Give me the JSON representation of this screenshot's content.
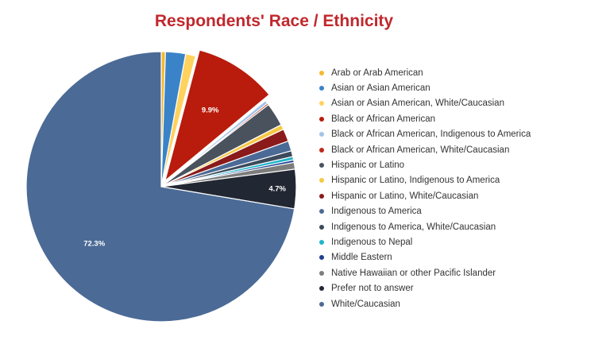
{
  "chart_data": {
    "type": "pie",
    "title": "Respondents' Race / Ethnicity",
    "legend_position": "right",
    "slices": [
      {
        "name": "Arab or Arab American",
        "value": 0.5,
        "color": "#f5b82e",
        "label": ""
      },
      {
        "name": "Asian or Asian American",
        "value": 2.4,
        "color": "#3a83c9",
        "label": ""
      },
      {
        "name": "Asian or Asian American, White/Caucasian",
        "value": 1.2,
        "color": "#ffd25e",
        "label": ""
      },
      {
        "name": "Black or African American",
        "value": 9.9,
        "color": "#b91c0c",
        "label": "9.9%"
      },
      {
        "name": "Black or African American, Indigenous to America",
        "value": 0.4,
        "color": "#9fc5e8",
        "label": ""
      },
      {
        "name": "Black or African American, White/Caucasian",
        "value": 0.2,
        "color": "#c0281d",
        "label": ""
      },
      {
        "name": "Hispanic or Latino",
        "value": 2.8,
        "color": "#4a525e",
        "label": ""
      },
      {
        "name": "Hispanic or Latino, Indigenous to America",
        "value": 0.6,
        "color": "#f7c843",
        "label": ""
      },
      {
        "name": "Hispanic or Latino, White/Caucasian",
        "value": 1.5,
        "color": "#8b1a1a",
        "label": ""
      },
      {
        "name": "Indigenous to America",
        "value": 1.2,
        "color": "#4b6a96",
        "label": ""
      },
      {
        "name": "Indigenous to America, White/Caucasian",
        "value": 0.7,
        "color": "#3c4a5c",
        "label": ""
      },
      {
        "name": "Indigenous to Nepal",
        "value": 0.4,
        "color": "#1fb5c9",
        "label": ""
      },
      {
        "name": "Middle Eastern",
        "value": 0.3,
        "color": "#1f3f8f",
        "label": ""
      },
      {
        "name": "Native Hawaiian or other Pacific Islander",
        "value": 0.8,
        "color": "#7d7d7d",
        "label": ""
      },
      {
        "name": "Prefer not to answer",
        "value": 4.7,
        "color": "#222833",
        "label": "4.7%"
      },
      {
        "name": "White/Caucasian",
        "value": 72.3,
        "color": "#4b6a96",
        "label": "72.3%"
      }
    ]
  }
}
